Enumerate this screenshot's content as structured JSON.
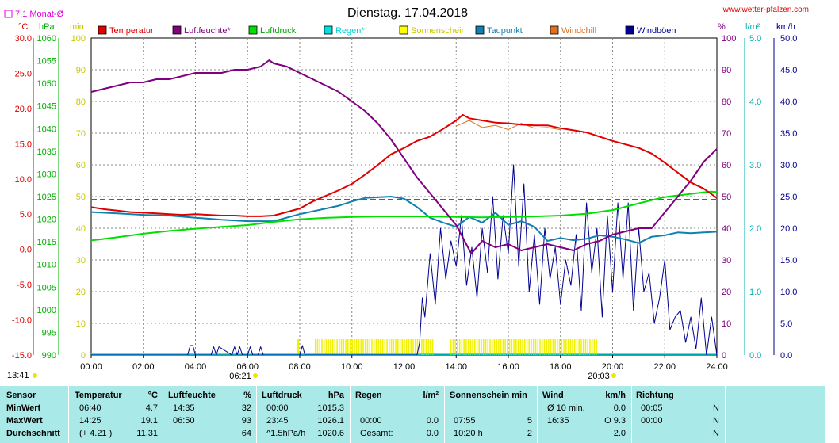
{
  "header": {
    "title": "Dienstag. 17.04.2018",
    "url": "www.wetter-pfalzen.com",
    "monat_label": "7.1 Monat-Ø"
  },
  "colors": {
    "temperatur": "#e00000",
    "luftfeuchte": "#800080",
    "luftdruck": "#00e000",
    "regen": "#00e0e0",
    "sonnenschein": "#ffff00",
    "taupunkt": "#1080b0",
    "windchill": "#e07020",
    "windboeen": "#000090",
    "monat_line": "#e000e0",
    "stats_bg": "#a9eae8"
  },
  "legend": [
    {
      "label": "Temperatur",
      "color": "#e00000",
      "text_color": "#e00000"
    },
    {
      "label": "Luftfeuchte*",
      "color": "#800080",
      "text_color": "#800080"
    },
    {
      "label": "Luftdruck",
      "color": "#00e000",
      "text_color": "#00a000"
    },
    {
      "label": "Regen*",
      "color": "#00e0e0",
      "text_color": "#00d0d0"
    },
    {
      "label": "Sonnenschein",
      "color": "#ffff00",
      "text_color": "#c8c800"
    },
    {
      "label": "Taupunkt",
      "color": "#1080b0",
      "text_color": "#1080b0"
    },
    {
      "label": "Windchill",
      "color": "#e07020",
      "text_color": "#e07020"
    },
    {
      "label": "Windböen",
      "color": "#000090",
      "text_color": "#000090"
    }
  ],
  "axes": {
    "left": [
      {
        "unit": "°C",
        "color": "#e00000",
        "ticks": [
          "30.0",
          "25.0",
          "20.0",
          "15.0",
          "10.0",
          "5.0",
          "0.0",
          "-5.0",
          "-10.0",
          "-15.0"
        ]
      },
      {
        "unit": "hPa",
        "color": "#00b000",
        "ticks": [
          "1060",
          "1055",
          "1050",
          "1045",
          "1040",
          "1035",
          "1030",
          "1025",
          "1020",
          "1015",
          "1010",
          "1005",
          "1000",
          "995",
          "990"
        ]
      },
      {
        "unit": "min",
        "color": "#c8c800",
        "ticks": [
          "100",
          "90",
          "80",
          "70",
          "60",
          "50",
          "40",
          "30",
          "20",
          "10",
          "0"
        ]
      }
    ],
    "right": [
      {
        "unit": "%",
        "color": "#800080",
        "ticks": [
          "100",
          "90",
          "80",
          "70",
          "60",
          "50",
          "40",
          "30",
          "20",
          "10",
          "0"
        ]
      },
      {
        "unit": "l/m²",
        "color": "#00b0b0",
        "ticks": [
          "5.0",
          "4.0",
          "3.0",
          "2.0",
          "1.0",
          "0.0"
        ]
      },
      {
        "unit": "km/h",
        "color": "#000090",
        "ticks": [
          "50.0",
          "45.0",
          "40.0",
          "35.0",
          "30.0",
          "25.0",
          "20.0",
          "15.0",
          "10.0",
          "5.0",
          "0.0"
        ]
      }
    ],
    "x_ticks": [
      "00:00",
      "02:00",
      "04:00",
      "06:00",
      "08:00",
      "10:00",
      "12:00",
      "14:00",
      "16:00",
      "18:00",
      "20:00",
      "22:00",
      "24:00"
    ],
    "sunrise": "06:21",
    "sunset": "20:03",
    "updated": "13:41"
  },
  "chart_data": {
    "type": "line",
    "title": "Dienstag. 17.04.2018",
    "x_range": [
      0,
      24
    ],
    "monthly_avg_temp": 7.1,
    "series": [
      {
        "name": "Temperatur",
        "axis": "°C",
        "x": [
          0,
          0.5,
          1,
          1.5,
          2,
          2.5,
          3,
          3.5,
          4,
          4.5,
          5,
          5.5,
          6,
          6.5,
          7,
          7.5,
          8,
          8.5,
          9,
          9.5,
          10,
          10.5,
          11,
          11.5,
          12,
          12.5,
          13,
          13.5,
          14,
          14.25,
          14.5,
          15,
          15.5,
          16,
          16.5,
          17,
          17.5,
          18,
          18.5,
          19,
          19.5,
          20,
          20.5,
          21,
          21.5,
          22,
          22.5,
          23,
          23.5,
          24
        ],
        "values": [
          6.0,
          5.7,
          5.5,
          5.3,
          5.2,
          5.1,
          5.0,
          4.9,
          5.0,
          4.9,
          4.8,
          4.8,
          4.7,
          4.7,
          4.8,
          5.3,
          5.8,
          6.8,
          7.6,
          8.4,
          9.3,
          10.6,
          12.0,
          13.5,
          14.4,
          15.4,
          16.0,
          17.1,
          18.3,
          19.1,
          18.6,
          18.3,
          18.0,
          17.9,
          17.7,
          17.6,
          17.6,
          17.2,
          16.9,
          16.6,
          16.0,
          15.4,
          14.9,
          14.4,
          13.6,
          12.3,
          10.9,
          9.5,
          8.6,
          7.3
        ]
      },
      {
        "name": "Luftfeuchte*",
        "axis": "%",
        "x": [
          0,
          0.5,
          1,
          1.5,
          2,
          2.5,
          3,
          3.5,
          4,
          4.5,
          5,
          5.5,
          6,
          6.5,
          6.83,
          7,
          7.5,
          8,
          8.5,
          9,
          9.5,
          10,
          10.5,
          11,
          11.5,
          12,
          12.5,
          13,
          13.5,
          14,
          14.58,
          15,
          15.5,
          16,
          16.5,
          17,
          17.5,
          18,
          18.5,
          19,
          19.5,
          20,
          20.5,
          21,
          21.5,
          22,
          22.5,
          23,
          23.5,
          24
        ],
        "values": [
          83,
          84,
          85,
          86,
          86,
          87,
          87,
          88,
          89,
          89,
          89,
          90,
          90,
          91,
          93,
          92,
          91,
          89,
          87,
          85,
          83,
          80,
          77,
          73,
          68,
          62,
          56,
          51,
          46,
          41,
          32,
          36,
          34,
          35,
          33,
          34,
          35,
          34,
          33,
          35,
          36,
          38,
          39,
          40,
          40,
          45,
          50,
          55,
          61,
          65
        ]
      },
      {
        "name": "Luftdruck",
        "axis": "hPa",
        "x": [
          0,
          1,
          2,
          3,
          4,
          5,
          6,
          7,
          8,
          9,
          10,
          11,
          12,
          13,
          14,
          15,
          16,
          17,
          18,
          19,
          20,
          21,
          22,
          23,
          23.75,
          24
        ],
        "values": [
          1015.3,
          1016.0,
          1016.8,
          1017.4,
          1017.9,
          1018.3,
          1018.7,
          1019.4,
          1020.0,
          1020.3,
          1020.5,
          1020.6,
          1020.6,
          1020.6,
          1020.5,
          1020.4,
          1020.5,
          1020.6,
          1020.8,
          1021.2,
          1022.0,
          1023.5,
          1024.9,
          1025.6,
          1026.1,
          1026.0
        ]
      },
      {
        "name": "Taupunkt",
        "axis": "°C",
        "x": [
          0,
          1,
          2,
          3,
          4,
          5,
          6,
          7,
          8,
          8.5,
          9,
          9.5,
          10,
          10.5,
          11,
          11.5,
          12,
          12.5,
          13,
          13.5,
          14,
          14.5,
          15,
          15.5,
          16,
          16.5,
          17,
          17.5,
          18,
          18.5,
          19,
          19.5,
          20,
          20.5,
          21,
          21.5,
          22,
          22.5,
          23,
          23.5,
          24
        ],
        "values": [
          5.3,
          5.1,
          4.9,
          4.8,
          4.5,
          4.2,
          4.0,
          4.0,
          5.0,
          5.4,
          5.8,
          6.2,
          6.8,
          7.3,
          7.4,
          7.5,
          7.2,
          6.0,
          4.5,
          3.8,
          3.2,
          4.6,
          3.8,
          5.2,
          3.5,
          4.0,
          3.2,
          1.2,
          1.6,
          1.3,
          1.5,
          2.0,
          1.8,
          1.4,
          0.9,
          1.8,
          2.0,
          2.4,
          2.3,
          2.4,
          2.5
        ]
      },
      {
        "name": "Windchill",
        "axis": "°C",
        "x": [
          14,
          14.5,
          15,
          15.5,
          16,
          16.5,
          17,
          17.5,
          18
        ],
        "values": [
          17.5,
          18.3,
          17.3,
          17.6,
          17.0,
          17.9,
          17.2,
          17.3,
          17.0
        ]
      },
      {
        "name": "Windböen",
        "axis": "km/h",
        "x": [
          0,
          3.7,
          3.8,
          3.9,
          4,
          4.6,
          4.7,
          4.8,
          4.9,
          5.4,
          5.5,
          5.6,
          5.7,
          5.8,
          6,
          6.1,
          6.2,
          6.4,
          6.5,
          6.6,
          8,
          8.1,
          8.2,
          12.5,
          12.6,
          12.7,
          12.8,
          13,
          13.2,
          13.4,
          13.6,
          13.8,
          14,
          14.2,
          14.4,
          14.6,
          14.8,
          15,
          15.2,
          15.4,
          15.6,
          15.8,
          16,
          16.2,
          16.4,
          16.6,
          16.8,
          17,
          17.2,
          17.4,
          17.6,
          17.8,
          18,
          18.2,
          18.4,
          18.6,
          18.8,
          19,
          19.2,
          19.4,
          19.6,
          19.8,
          20,
          20.2,
          20.4,
          20.6,
          20.8,
          21,
          21.2,
          21.4,
          21.6,
          21.8,
          22,
          22.2,
          22.4,
          22.6,
          22.8,
          23,
          23.2,
          23.4,
          23.6,
          23.8,
          24
        ],
        "values": [
          0,
          0,
          1.5,
          1.5,
          0,
          0,
          1.3,
          0,
          1.3,
          0,
          1.3,
          0,
          1.3,
          0,
          0,
          1.3,
          0,
          0,
          1.3,
          0,
          0,
          1.5,
          0,
          0,
          2,
          9,
          6,
          16,
          8,
          20,
          12,
          18,
          14,
          22,
          11,
          17,
          9,
          20,
          13,
          25,
          12,
          22,
          16,
          30,
          14,
          27,
          10,
          19,
          8,
          20,
          12,
          17,
          8,
          15,
          11,
          19,
          7,
          24,
          13,
          20,
          6,
          22,
          10,
          24,
          12,
          24,
          7,
          20,
          10,
          13,
          5,
          9,
          15,
          4,
          6,
          7,
          2,
          6,
          1,
          9,
          0,
          6,
          0
        ]
      }
    ],
    "sunshine_periods": [
      [
        8.6,
        13.1
      ],
      [
        13.8,
        19.4
      ]
    ]
  },
  "stats": {
    "headers": {
      "sensor": "Sensor",
      "temperatur": "Temperatur",
      "temperatur_unit": "°C",
      "luftfeuchte": "Luftfeuchte",
      "luftfeuchte_unit": "%",
      "luftdruck": "Luftdruck",
      "luftdruck_unit": "hPa",
      "regen": "Regen",
      "regen_unit": "l/m²",
      "sonnenschein": "Sonnenschein min",
      "wind": "Wind",
      "wind_unit": "km/h",
      "richtung": "Richtung"
    },
    "rows": [
      {
        "label": "MinWert",
        "temp_time": "06:40",
        "temp_val": "4.7",
        "hum_time": "14:35",
        "hum_val": "32",
        "press_time": "00:00",
        "press_val": "1015.3",
        "rain_time": "",
        "rain_val": "",
        "sun_time": "",
        "sun_val": "",
        "wind_time": "Ø 10 min.",
        "wind_val": "0.0",
        "dir_time": "00:05",
        "dir_val": "N"
      },
      {
        "label": "MaxWert",
        "temp_time": "14:25",
        "temp_val": "19.1",
        "hum_time": "06:50",
        "hum_val": "93",
        "press_time": "23:45",
        "press_val": "1026.1",
        "rain_time": "00:00",
        "rain_val": "0.0",
        "sun_time": "07:55",
        "sun_val": "5",
        "wind_time": "16:35",
        "wind_val": "O 9.3",
        "dir_time": "00:00",
        "dir_val": "N"
      },
      {
        "label": "Durchschnitt",
        "temp_time": "(+ 4.21 )",
        "temp_val": "11.31",
        "hum_time": "",
        "hum_val": "64",
        "press_time": "^1.5hPa/h",
        "press_val": "1020.6",
        "rain_time": "Gesamt:",
        "rain_val": "0.0",
        "sun_time": "10:20 h",
        "sun_val": "2",
        "wind_time": "",
        "wind_val": "2.0",
        "dir_time": "",
        "dir_val": "N"
      }
    ]
  }
}
